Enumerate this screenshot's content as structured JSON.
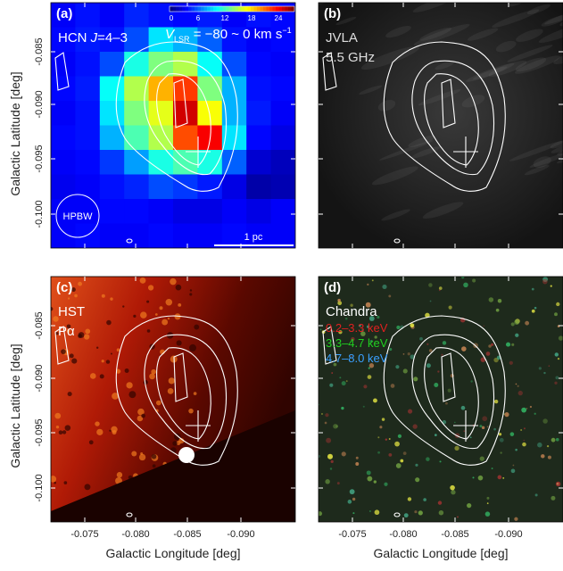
{
  "axes": {
    "x_label": "Galactic Longitude [deg]",
    "y_label": "Galactic Latitude  [deg]",
    "xticks": [
      "-0.075",
      "-0.080",
      "-0.085",
      "-0.090"
    ],
    "yticks": [
      "-0.085",
      "-0.090",
      "-0.095",
      "-0.100"
    ]
  },
  "panels": [
    {
      "label": "(a)",
      "line_prefix": "HCN ",
      "line_italic": "J",
      "line_suffix": "=4–3",
      "colorbar_ticks": [
        "0",
        "6",
        "12",
        "18",
        "24"
      ],
      "velocity": {
        "symbol": "V",
        "subscript": "LSR",
        "text": " = −80 ~ 0 km s",
        "superscript": "−1"
      },
      "beam": "HPBW",
      "scale": "1 pc"
    },
    {
      "label": "(b)",
      "lines": [
        "JVLA",
        "5.5 GHz"
      ]
    },
    {
      "label": "(c)",
      "lines": [
        "HST",
        "Pα"
      ]
    },
    {
      "label": "(d)",
      "lines": [
        "Chandra"
      ],
      "bands": [
        "0.2–3.3 keV",
        "3.3–4.7 keV",
        "4.7–8.0 keV"
      ]
    }
  ]
}
